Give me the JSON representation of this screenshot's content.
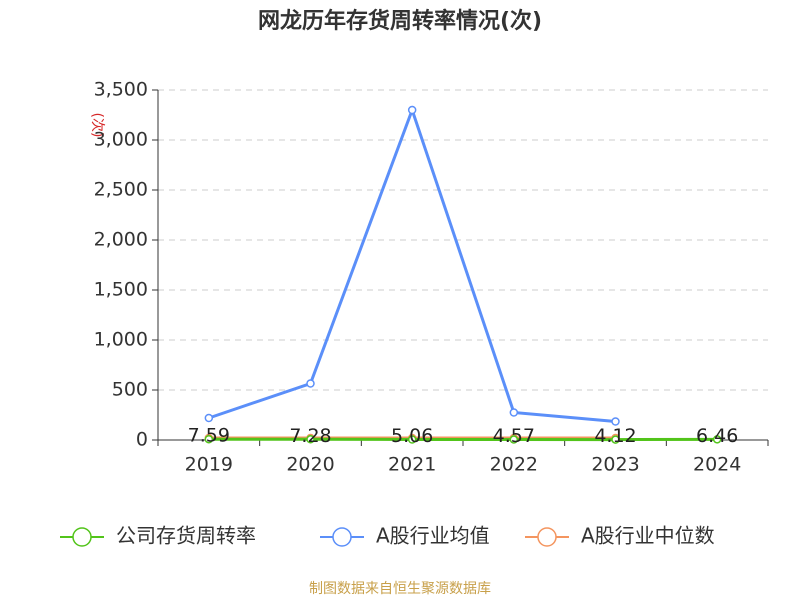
{
  "chart_data": {
    "type": "line",
    "title": "网龙历年存货周转率情况(次)",
    "ylabel": "(次)",
    "categories": [
      "2019",
      "2020",
      "2021",
      "2022",
      "2023",
      "2024"
    ],
    "series": [
      {
        "name": "公司存货周转率",
        "color": "#52c41a",
        "values": [
          7.59,
          7.28,
          5.06,
          4.57,
          4.12,
          6.46
        ]
      },
      {
        "name": "A股行业均值",
        "color": "#5b8ff9",
        "values": [
          220,
          565,
          3300,
          275,
          185,
          null
        ]
      },
      {
        "name": "A股行业中位数",
        "color": "#f4955f",
        "values": [
          20,
          20,
          20,
          20,
          20,
          null
        ]
      }
    ],
    "ylim": [
      0,
      3500
    ],
    "yticks": [
      0,
      500,
      {
        "value": 1000,
        "label": "1,000"
      },
      {
        "value": 1500,
        "label": "1,500"
      },
      {
        "value": 2000,
        "label": "2,000"
      },
      {
        "value": 2500,
        "label": "2,500"
      },
      {
        "value": 3000,
        "label": "3,000"
      },
      {
        "value": 3500,
        "label": "3,500"
      }
    ],
    "grid": true,
    "source": "制图数据来自恒生聚源数据库"
  }
}
